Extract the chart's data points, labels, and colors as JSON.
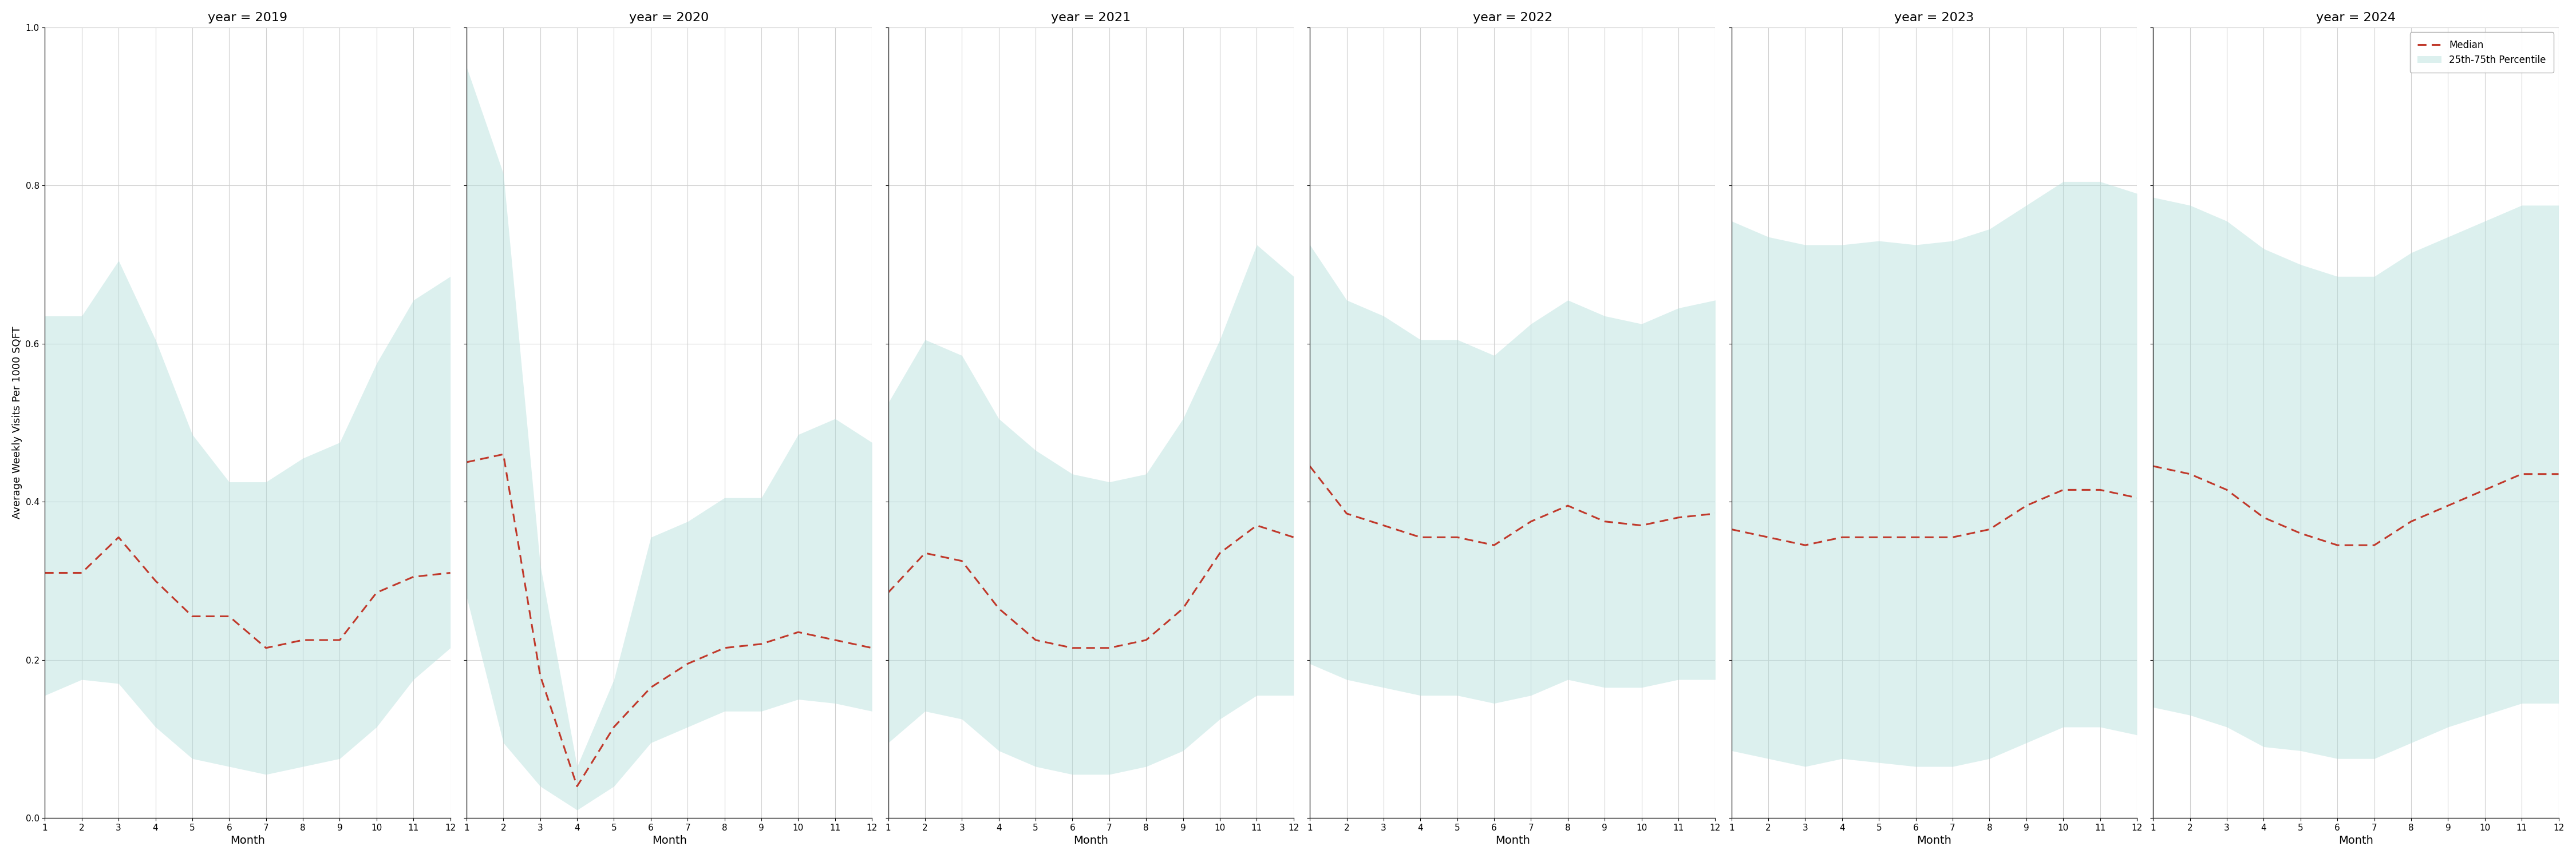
{
  "years": [
    2019,
    2020,
    2021,
    2022,
    2023,
    2024
  ],
  "months": [
    1,
    2,
    3,
    4,
    5,
    6,
    7,
    8,
    9,
    10,
    11,
    12
  ],
  "median": {
    "2019": [
      0.31,
      0.31,
      0.355,
      0.3,
      0.255,
      0.255,
      0.215,
      0.225,
      0.225,
      0.285,
      0.305,
      0.31
    ],
    "2020": [
      0.45,
      0.46,
      0.18,
      0.04,
      0.115,
      0.165,
      0.195,
      0.215,
      0.22,
      0.235,
      0.225,
      0.215
    ],
    "2021": [
      0.285,
      0.335,
      0.325,
      0.265,
      0.225,
      0.215,
      0.215,
      0.225,
      0.265,
      0.335,
      0.37,
      0.355
    ],
    "2022": [
      0.445,
      0.385,
      0.37,
      0.355,
      0.355,
      0.345,
      0.375,
      0.395,
      0.375,
      0.37,
      0.38,
      0.385
    ],
    "2023": [
      0.365,
      0.355,
      0.345,
      0.355,
      0.355,
      0.355,
      0.355,
      0.365,
      0.395,
      0.415,
      0.415,
      0.405
    ],
    "2024": [
      0.445,
      0.435,
      0.415,
      0.38,
      0.36,
      0.345,
      0.345,
      0.375,
      0.395,
      0.415,
      0.435,
      0.435
    ]
  },
  "p25": {
    "2019": [
      0.155,
      0.175,
      0.17,
      0.115,
      0.075,
      0.065,
      0.055,
      0.065,
      0.075,
      0.115,
      0.175,
      0.215
    ],
    "2020": [
      0.28,
      0.095,
      0.04,
      0.01,
      0.04,
      0.095,
      0.115,
      0.135,
      0.135,
      0.15,
      0.145,
      0.135
    ],
    "2021": [
      0.095,
      0.135,
      0.125,
      0.085,
      0.065,
      0.055,
      0.055,
      0.065,
      0.085,
      0.125,
      0.155,
      0.155
    ],
    "2022": [
      0.195,
      0.175,
      0.165,
      0.155,
      0.155,
      0.145,
      0.155,
      0.175,
      0.165,
      0.165,
      0.175,
      0.175
    ],
    "2023": [
      0.085,
      0.075,
      0.065,
      0.075,
      0.07,
      0.065,
      0.065,
      0.075,
      0.095,
      0.115,
      0.115,
      0.105
    ],
    "2024": [
      0.14,
      0.13,
      0.115,
      0.09,
      0.085,
      0.075,
      0.075,
      0.095,
      0.115,
      0.13,
      0.145,
      0.145
    ]
  },
  "p75": {
    "2019": [
      0.635,
      0.635,
      0.705,
      0.605,
      0.485,
      0.425,
      0.425,
      0.455,
      0.475,
      0.575,
      0.655,
      0.685
    ],
    "2020": [
      0.95,
      0.815,
      0.32,
      0.065,
      0.175,
      0.355,
      0.375,
      0.405,
      0.405,
      0.485,
      0.505,
      0.475
    ],
    "2021": [
      0.525,
      0.605,
      0.585,
      0.505,
      0.465,
      0.435,
      0.425,
      0.435,
      0.505,
      0.605,
      0.725,
      0.685
    ],
    "2022": [
      0.725,
      0.655,
      0.635,
      0.605,
      0.605,
      0.585,
      0.625,
      0.655,
      0.635,
      0.625,
      0.645,
      0.655
    ],
    "2023": [
      0.755,
      0.735,
      0.725,
      0.725,
      0.73,
      0.725,
      0.73,
      0.745,
      0.775,
      0.805,
      0.805,
      0.79
    ],
    "2024": [
      0.785,
      0.775,
      0.755,
      0.72,
      0.7,
      0.685,
      0.685,
      0.715,
      0.735,
      0.755,
      0.775,
      0.775
    ]
  },
  "fill_color": "#b2dfdb",
  "fill_alpha": 0.45,
  "line_color": "#c0392b",
  "line_style": "--",
  "line_width": 2.2,
  "ylabel": "Average Weekly Visits Per 1000 SQFT",
  "xlabel": "Month",
  "ylim": [
    0.0,
    1.0
  ],
  "xlim": [
    1,
    12
  ],
  "yticks": [
    0.0,
    0.2,
    0.4,
    0.6,
    0.8,
    1.0
  ],
  "xticks": [
    1,
    2,
    3,
    4,
    5,
    6,
    7,
    8,
    9,
    10,
    11,
    12
  ],
  "bg_color": "#ffffff",
  "grid_color": "#d0d0d0",
  "legend_median_label": "Median",
  "legend_band_label": "25th-75th Percentile",
  "title_prefix": "year = "
}
